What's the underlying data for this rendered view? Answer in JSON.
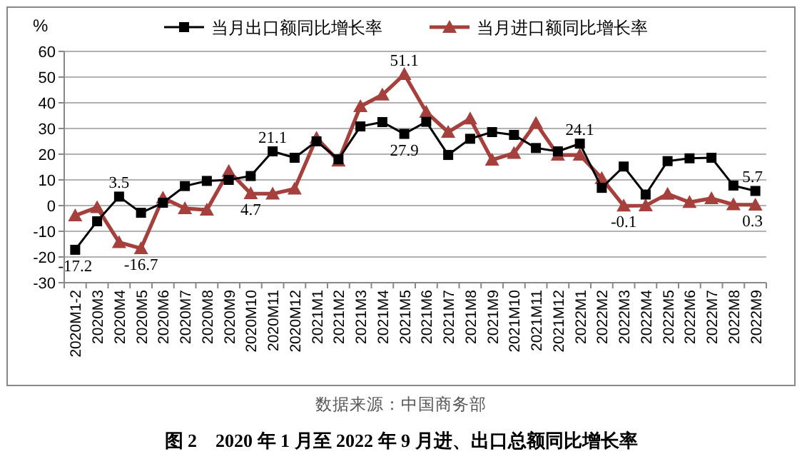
{
  "chart_data": {
    "type": "line",
    "title": "图 2　2020 年 1 月至 2022 年 9 月进、出口总额同比增长率",
    "ylabel": "%",
    "annotations": [
      "数据来源：中国商务部"
    ],
    "categories": [
      "2020M1-2",
      "2020M3",
      "2020M4",
      "2020M5",
      "2020M6",
      "2020M7",
      "2020M8",
      "2020M9",
      "2020M10",
      "2020M11",
      "2020M12",
      "2021M1",
      "2021M2",
      "2021M3",
      "2021M4",
      "2021M5",
      "2021M6",
      "2021M7",
      "2021M8",
      "2021M9",
      "2021M10",
      "2021M11",
      "2021M12",
      "2022M1",
      "2022M2",
      "2022M3",
      "2022M4",
      "2022M5",
      "2022M6",
      "2022M7",
      "2022M8",
      "2022M9"
    ],
    "series": [
      {
        "name": "当月出口额同比增长率",
        "color": "#000000",
        "marker": "square",
        "values": [
          -17.2,
          -6.1,
          3.5,
          -2.8,
          1.1,
          7.6,
          9.6,
          10.0,
          11.5,
          21.1,
          18.6,
          25.0,
          18.0,
          30.8,
          32.5,
          27.9,
          32.6,
          19.7,
          26.0,
          28.6,
          27.5,
          22.4,
          21.1,
          24.1,
          6.9,
          15.2,
          4.3,
          17.3,
          18.4,
          18.6,
          7.8,
          5.7
        ],
        "value_labels": [
          "-17.2",
          null,
          "3.5",
          null,
          null,
          null,
          null,
          null,
          null,
          "21.1",
          null,
          null,
          null,
          null,
          null,
          "27.9",
          null,
          null,
          null,
          null,
          null,
          null,
          null,
          "24.1",
          null,
          null,
          null,
          null,
          null,
          null,
          null,
          "5.7"
        ]
      },
      {
        "name": "当月进口额同比增长率",
        "color": "#a5403c",
        "marker": "triangle",
        "values": [
          -3.9,
          -0.7,
          -14.3,
          -16.7,
          3.0,
          -1.1,
          -1.7,
          13.4,
          4.7,
          4.6,
          6.5,
          26.3,
          17.4,
          38.6,
          43.1,
          51.1,
          36.4,
          28.6,
          33.8,
          17.8,
          20.4,
          32.1,
          19.7,
          19.7,
          10.6,
          -0.1,
          0.0,
          4.5,
          1.3,
          2.8,
          0.4,
          0.3
        ],
        "value_labels": [
          null,
          null,
          null,
          "-16.7",
          null,
          null,
          null,
          null,
          "4.7",
          null,
          null,
          null,
          null,
          null,
          null,
          "51.1",
          null,
          null,
          null,
          null,
          null,
          null,
          null,
          null,
          null,
          "-0.1",
          null,
          null,
          null,
          null,
          null,
          "0.3"
        ]
      }
    ],
    "ylim": [
      -30,
      60
    ],
    "yticks": [
      -30,
      -20,
      -10,
      0,
      10,
      20,
      30,
      40,
      50,
      60
    ],
    "grid": "y",
    "legend": "top",
    "line_style": "solid"
  }
}
